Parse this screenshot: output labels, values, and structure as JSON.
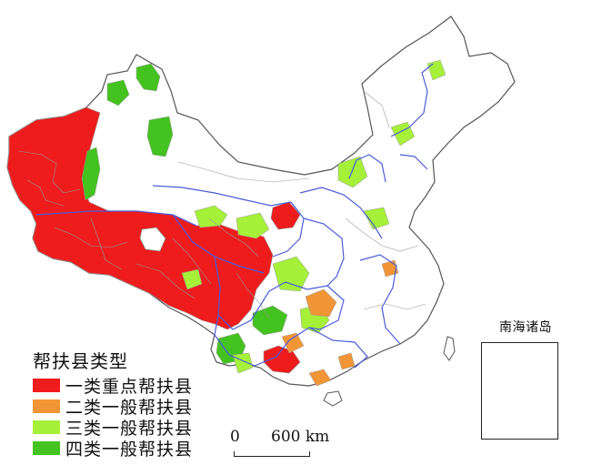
{
  "legend": {
    "title": "帮扶县类型",
    "items": [
      {
        "label": "一类重点帮扶县",
        "color": "#ee1c1c"
      },
      {
        "label": "二类一般帮扶县",
        "color": "#f29536"
      },
      {
        "label": "三类一般帮扶县",
        "color": "#a6f03a"
      },
      {
        "label": "四类一般帮扶县",
        "color": "#44c21f"
      }
    ]
  },
  "scale": {
    "zero_label": "0",
    "distance_label": "600 km"
  },
  "inset": {
    "title": "南海诸岛"
  },
  "colors": {
    "boundary_province": "#4a5cd8",
    "boundary_county": "#8c8c8c",
    "outline": "#555555",
    "land": "#ffffff"
  }
}
